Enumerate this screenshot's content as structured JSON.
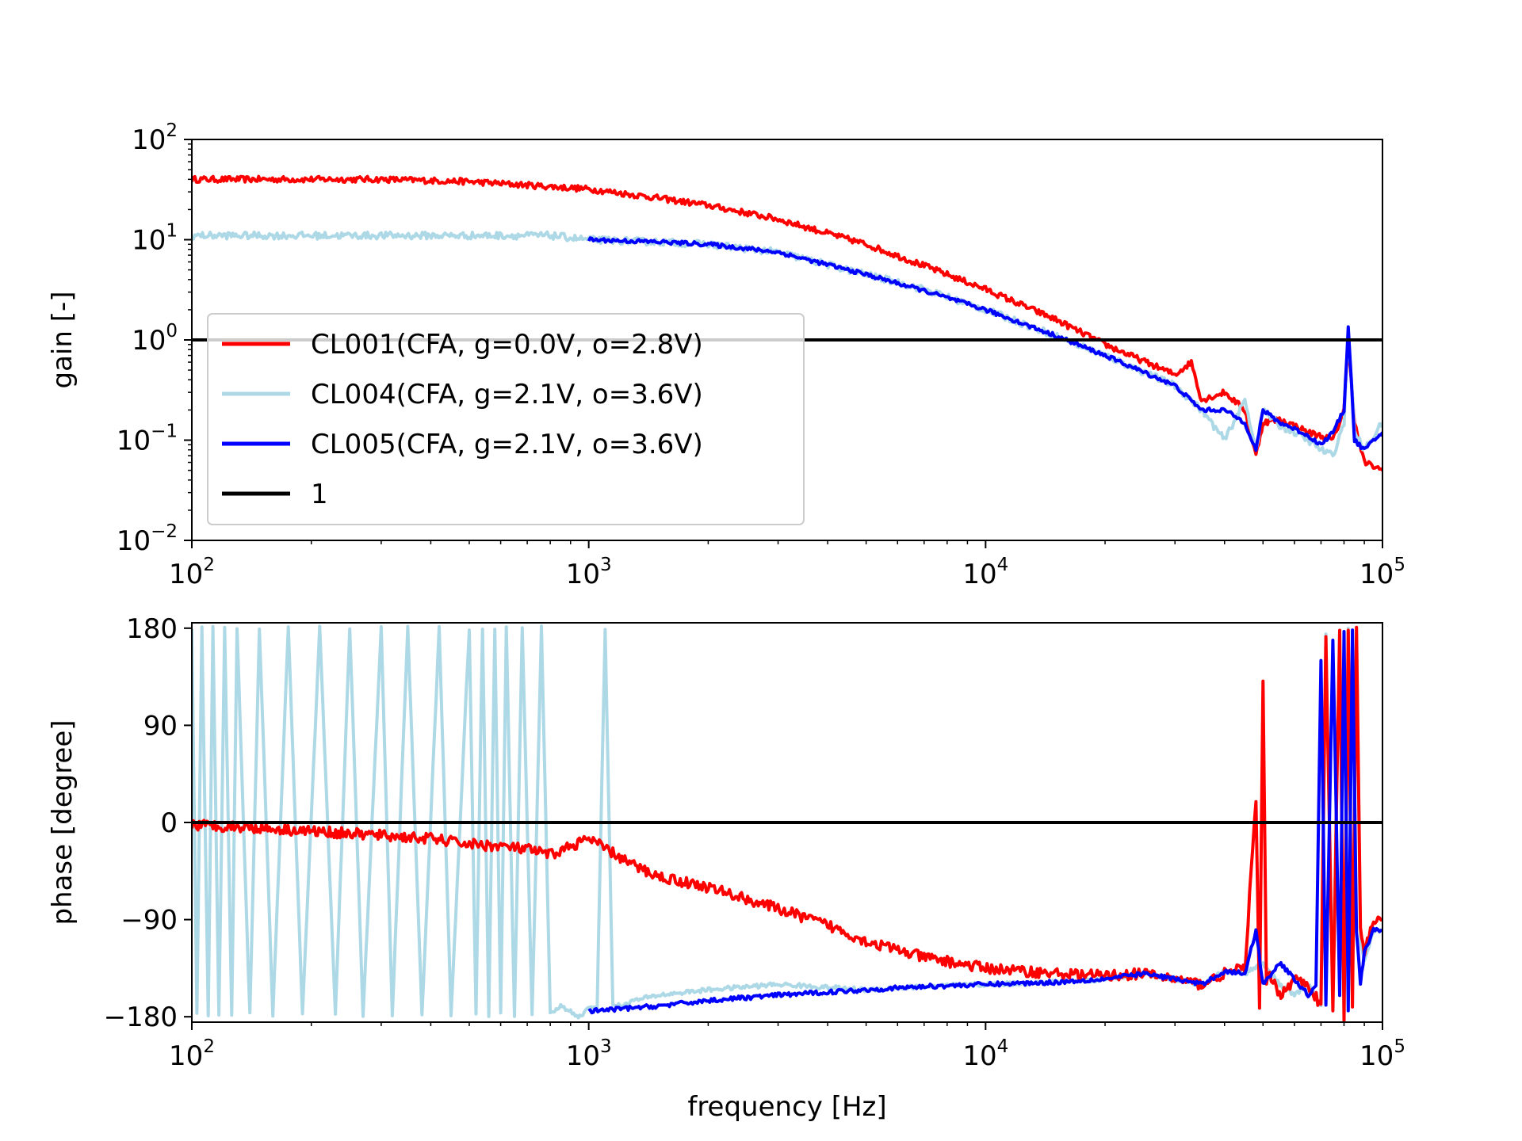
{
  "chart_data": [
    {
      "id": "gain",
      "type": "line",
      "xscale": "log",
      "yscale": "log",
      "xlim": [
        100,
        100000
      ],
      "ylim": [
        0.01,
        100
      ],
      "xlabel": "",
      "ylabel": "gain [-]",
      "xticks": [
        {
          "base": "10",
          "exp": "2"
        },
        {
          "base": "10",
          "exp": "3"
        },
        {
          "base": "10",
          "exp": "4"
        },
        {
          "base": "10",
          "exp": "5"
        }
      ],
      "yticks": [
        {
          "value": 100,
          "base": "10",
          "exp": "2"
        },
        {
          "value": 10,
          "base": "10",
          "exp": "1"
        },
        {
          "value": 1,
          "base": "10",
          "exp": "0"
        },
        {
          "value": 0.1,
          "base": "10",
          "exp": "−1"
        },
        {
          "value": 0.01,
          "base": "10",
          "exp": "−2"
        }
      ],
      "legend_position": "center-left",
      "series": [
        {
          "name": "CL001(CFA, g=0.0V, o=2.8V)",
          "color": "#ff0000",
          "x": [
            100,
            150,
            200,
            300,
            500,
            700,
            1000,
            1500,
            2000,
            3000,
            5000,
            7000,
            10000,
            15000,
            20000,
            30000,
            33000,
            35000,
            40000,
            45000,
            48000,
            50000,
            55000,
            60000,
            65000,
            70000,
            75000,
            80000,
            82000,
            85000,
            90000,
            100000
          ],
          "y": [
            40,
            40,
            40,
            40,
            38,
            35,
            32,
            26,
            22,
            16,
            9,
            5.5,
            3.2,
            1.6,
            0.9,
            0.45,
            0.6,
            0.25,
            0.3,
            0.2,
            0.07,
            0.15,
            0.16,
            0.14,
            0.12,
            0.11,
            0.1,
            0.2,
            1.0,
            0.15,
            0.06,
            0.05
          ],
          "noise": 0.06
        },
        {
          "name": "CL004(CFA, g=2.1V, o=3.6V)",
          "color": "#add8e6",
          "x": [
            100,
            150,
            200,
            300,
            500,
            700,
            800,
            1000,
            1500,
            2000,
            3000,
            5000,
            7000,
            10000,
            15000,
            20000,
            30000,
            35000,
            40000,
            45000,
            48000,
            50000,
            55000,
            60000,
            65000,
            70000,
            75000,
            80000,
            82000,
            85000,
            90000,
            100000
          ],
          "y": [
            11,
            11,
            11,
            11,
            11,
            11,
            11,
            10,
            9.5,
            9,
            7.5,
            4.5,
            3.2,
            2.0,
            1.1,
            0.7,
            0.35,
            0.2,
            0.1,
            0.25,
            0.08,
            0.2,
            0.14,
            0.12,
            0.1,
            0.08,
            0.07,
            0.15,
            1.3,
            0.12,
            0.08,
            0.15
          ],
          "noise": 0.07
        },
        {
          "name": "CL005(CFA, g=2.1V, o=3.6V)",
          "color": "#0000ff",
          "x": [
            1000,
            1500,
            2000,
            3000,
            5000,
            7000,
            10000,
            15000,
            20000,
            30000,
            35000,
            40000,
            45000,
            48000,
            50000,
            55000,
            60000,
            65000,
            70000,
            75000,
            80000,
            82000,
            85000,
            90000,
            100000
          ],
          "y": [
            10,
            9.5,
            9,
            7.5,
            4.5,
            3.1,
            2.0,
            1.1,
            0.7,
            0.35,
            0.2,
            0.2,
            0.15,
            0.08,
            0.2,
            0.15,
            0.13,
            0.11,
            0.09,
            0.12,
            0.2,
            1.4,
            0.1,
            0.08,
            0.12
          ],
          "noise": 0.04
        },
        {
          "name": "1",
          "color": "#000000",
          "x": [
            100,
            100000
          ],
          "y": [
            1,
            1
          ],
          "noise": 0
        }
      ]
    },
    {
      "id": "phase",
      "type": "line",
      "xscale": "log",
      "yscale": "linear",
      "xlim": [
        100,
        100000
      ],
      "ylim": [
        -185,
        185
      ],
      "xlabel": "frequency [Hz]",
      "ylabel": "phase [degree]",
      "xticks": [
        {
          "base": "10",
          "exp": "2"
        },
        {
          "base": "10",
          "exp": "3"
        },
        {
          "base": "10",
          "exp": "4"
        },
        {
          "base": "10",
          "exp": "5"
        }
      ],
      "yticks": [
        {
          "value": 180,
          "label": "180"
        },
        {
          "value": 90,
          "label": "90"
        },
        {
          "value": 0,
          "label": "0"
        },
        {
          "value": -90,
          "label": "−90"
        },
        {
          "value": -180,
          "label": "−180"
        }
      ],
      "series": [
        {
          "name": "CL004(CFA, g=2.1V, o=3.6V)",
          "color": "#add8e6",
          "x": [
            100,
            103,
            106,
            110,
            113,
            117,
            121,
            126,
            130,
            140,
            148,
            160,
            175,
            190,
            210,
            230,
            250,
            270,
            300,
            320,
            350,
            380,
            420,
            450,
            500,
            520,
            540,
            560,
            580,
            600,
            620,
            650,
            680,
            720,
            760,
            800,
            850,
            900,
            950,
            1000,
            1050,
            1100,
            1150,
            1200,
            1300,
            1500,
            2000,
            3000,
            5000,
            7000,
            10000,
            15000,
            20000,
            25000,
            30000,
            35000,
            40000,
            45000,
            50000,
            55000,
            60000,
            65000,
            70000,
            72000,
            75000,
            78000,
            80000,
            82000,
            84000,
            86000,
            88000,
            90000,
            95000,
            100000
          ],
          "y": [
            180,
            -178,
            180,
            -178,
            180,
            -178,
            180,
            -178,
            180,
            -178,
            180,
            -178,
            180,
            -178,
            180,
            -178,
            180,
            -178,
            180,
            -178,
            180,
            -178,
            180,
            -178,
            180,
            -178,
            180,
            -178,
            180,
            -178,
            180,
            -178,
            180,
            -178,
            180,
            -178,
            -170,
            -175,
            -180,
            -172,
            -170,
            180,
            -168,
            -170,
            -165,
            -160,
            -155,
            -150,
            -155,
            -152,
            -150,
            -148,
            -145,
            -140,
            -145,
            -150,
            -138,
            -140,
            -130,
            -150,
            -160,
            -150,
            -170,
            175,
            -160,
            178,
            -175,
            180,
            -170,
            180,
            -110,
            -130,
            -100,
            -100
          ],
          "noise": 2
        },
        {
          "name": "CL001(CFA, g=0.0V, o=2.8V)",
          "color": "#ff0000",
          "x": [
            100,
            150,
            200,
            300,
            400,
            500,
            600,
            700,
            800,
            1000,
            1300,
            1500,
            2000,
            3000,
            4000,
            5000,
            7000,
            10000,
            15000,
            20000,
            25000,
            30000,
            35000,
            40000,
            45000,
            48000,
            49000,
            50000,
            51000,
            52000,
            55000,
            60000,
            65000,
            70000,
            72000,
            75000,
            78000,
            80000,
            82000,
            84000,
            86000,
            88000,
            90000,
            95000,
            100000
          ],
          "y": [
            -2,
            -5,
            -8,
            -12,
            -15,
            -20,
            -22,
            -25,
            -30,
            -15,
            -40,
            -50,
            -60,
            -80,
            -95,
            -110,
            -125,
            -135,
            -140,
            -142,
            -140,
            -145,
            -150,
            -140,
            -135,
            20,
            -170,
            130,
            -150,
            -140,
            -160,
            -145,
            -150,
            -170,
            170,
            -175,
            175,
            -180,
            180,
            -170,
            180,
            -100,
            -120,
            -90,
            -90
          ],
          "noise": 5
        },
        {
          "name": "CL005(CFA, g=2.1V, o=3.6V)",
          "color": "#0000ff",
          "x": [
            1000,
            1500,
            2000,
            3000,
            5000,
            7000,
            10000,
            15000,
            20000,
            25000,
            30000,
            35000,
            40000,
            45000,
            48000,
            50000,
            55000,
            60000,
            65000,
            68000,
            70000,
            72000,
            75000,
            78000,
            80000,
            82000,
            84000,
            86000,
            88000,
            90000,
            95000,
            100000
          ],
          "y": [
            -175,
            -170,
            -165,
            -160,
            -155,
            -152,
            -150,
            -148,
            -145,
            -140,
            -145,
            -150,
            -138,
            -140,
            -100,
            -150,
            -130,
            -145,
            -160,
            -150,
            150,
            -170,
            170,
            -160,
            175,
            -175,
            178,
            -100,
            -150,
            -120,
            -100,
            -100
          ],
          "noise": 2
        },
        {
          "name": "zero-line",
          "color": "#000000",
          "x": [
            100,
            100000
          ],
          "y": [
            0,
            0
          ],
          "noise": 0
        }
      ]
    }
  ]
}
